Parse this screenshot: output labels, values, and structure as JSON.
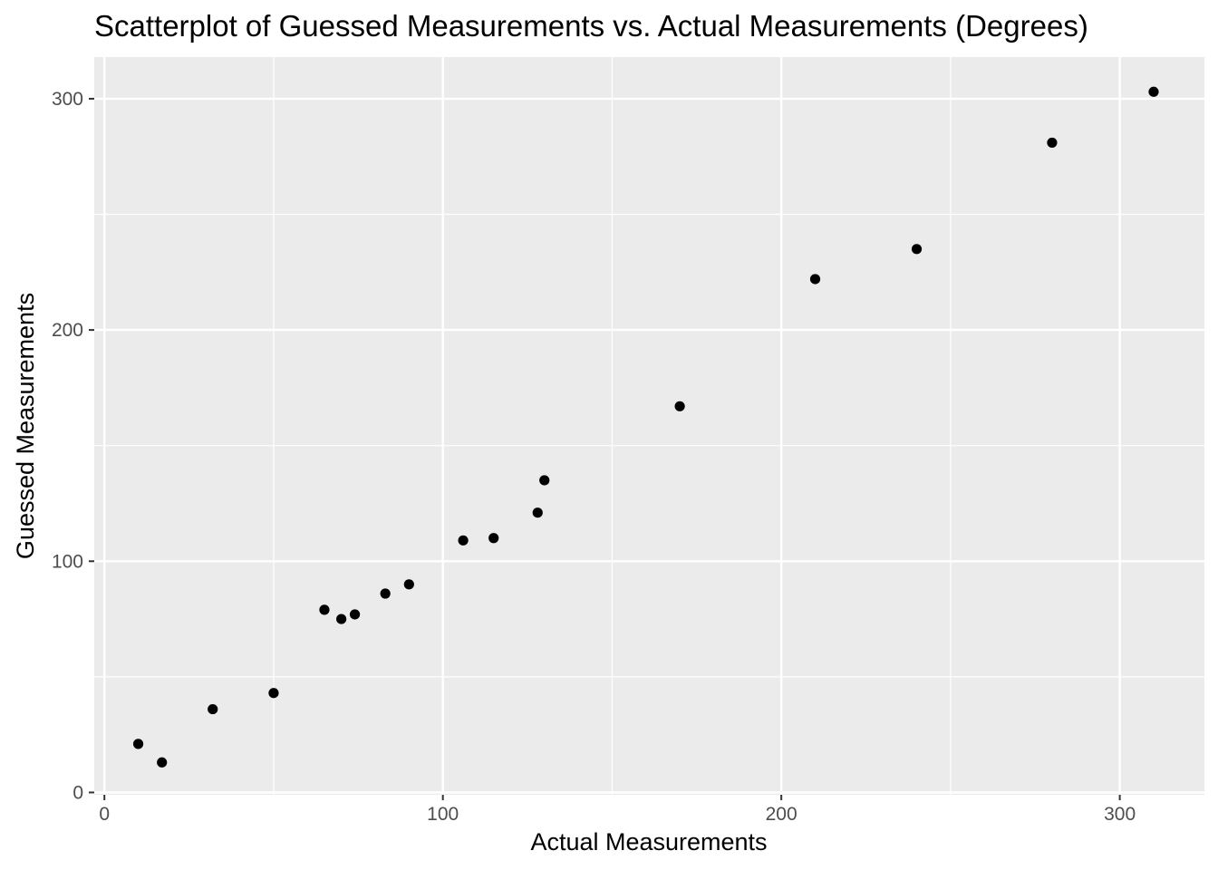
{
  "chart_data": {
    "type": "scatter",
    "title": "Scatterplot of Guessed Measurements vs. Actual Measurements (Degrees)",
    "xlabel": "Actual Measurements",
    "ylabel": "Guessed Measurements",
    "xlim": [
      -3,
      325
    ],
    "ylim": [
      -1,
      318
    ],
    "x_ticks": [
      0,
      100,
      200,
      300
    ],
    "x_tick_labels": [
      "0",
      "100",
      "200",
      "300"
    ],
    "y_ticks": [
      0,
      100,
      200,
      300
    ],
    "y_tick_labels": [
      "0",
      "100",
      "200",
      "300"
    ],
    "x_minor_ticks": [
      50,
      150,
      250
    ],
    "y_minor_ticks": [
      50,
      150,
      250
    ],
    "grid": true,
    "legend": "none",
    "colors": {
      "panel_background": "#ebebeb",
      "grid_line": "#ffffff",
      "point": "#000000",
      "tick_text": "#4d4d4d",
      "axis_tick": "#333333"
    },
    "points": [
      {
        "x": 10,
        "y": 21
      },
      {
        "x": 17,
        "y": 13
      },
      {
        "x": 32,
        "y": 36
      },
      {
        "x": 50,
        "y": 43
      },
      {
        "x": 65,
        "y": 79
      },
      {
        "x": 70,
        "y": 75
      },
      {
        "x": 74,
        "y": 77
      },
      {
        "x": 83,
        "y": 86
      },
      {
        "x": 90,
        "y": 90
      },
      {
        "x": 106,
        "y": 109
      },
      {
        "x": 115,
        "y": 110
      },
      {
        "x": 128,
        "y": 121
      },
      {
        "x": 130,
        "y": 135
      },
      {
        "x": 170,
        "y": 167
      },
      {
        "x": 210,
        "y": 222
      },
      {
        "x": 240,
        "y": 235
      },
      {
        "x": 280,
        "y": 281
      },
      {
        "x": 310,
        "y": 303
      }
    ]
  }
}
